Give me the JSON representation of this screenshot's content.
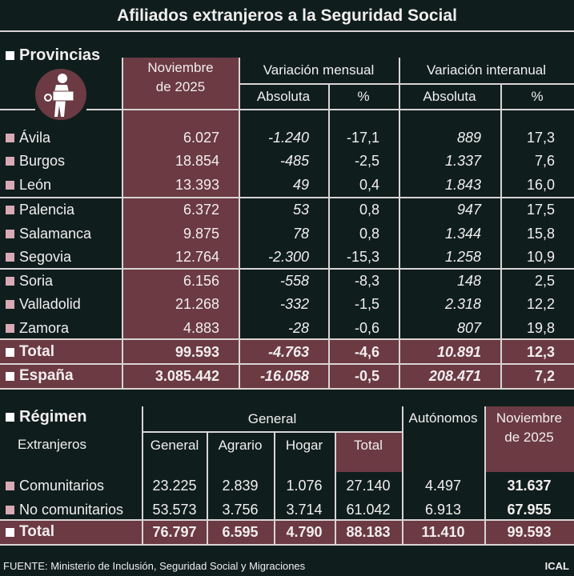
{
  "title": "Afiliados extranjeros a la Seguridad Social",
  "source": "FUENTE: Ministerio de Inclusión, Seguridad Social y Migraciones",
  "brand": "ICAL",
  "colors": {
    "background": "#0f1e1d",
    "accent": "#6b3a43",
    "bullet": "#d9a9b5"
  },
  "icon": "worker-with-toolbox-icon",
  "chart_data": [
    {
      "type": "table",
      "title": "Provincias",
      "headers": {
        "month": "Noviembre de 2025",
        "mensual": "Variación mensual",
        "interanual": "Variación interanual",
        "absoluta": "Absoluta",
        "pct": "%"
      },
      "rows": [
        {
          "name": "Ávila",
          "values": [
            "6.027",
            "-1.240",
            "-17,1",
            "889",
            "17,3"
          ]
        },
        {
          "name": "Burgos",
          "values": [
            "18.854",
            "-485",
            "-2,5",
            "1.337",
            "7,6"
          ]
        },
        {
          "name": "León",
          "values": [
            "13.393",
            "49",
            "0,4",
            "1.843",
            "16,0"
          ]
        },
        {
          "name": "Palencia",
          "values": [
            "6.372",
            "53",
            "0,8",
            "947",
            "17,5"
          ]
        },
        {
          "name": "Salamanca",
          "values": [
            "9.875",
            "78",
            "0,8",
            "1.344",
            "15,8"
          ]
        },
        {
          "name": "Segovia",
          "values": [
            "12.764",
            "-2.300",
            "-15,3",
            "1.258",
            "10,9"
          ]
        },
        {
          "name": "Soria",
          "values": [
            "6.156",
            "-558",
            "-8,3",
            "148",
            "2,5"
          ]
        },
        {
          "name": "Valladolid",
          "values": [
            "21.268",
            "-332",
            "-1,5",
            "2.318",
            "12,2"
          ]
        },
        {
          "name": "Zamora",
          "values": [
            "4.883",
            "-28",
            "-0,6",
            "807",
            "19,8"
          ]
        },
        {
          "name": "Total",
          "values": [
            "99.593",
            "-4.763",
            "-4,6",
            "10.891",
            "12,3"
          ]
        },
        {
          "name": "España",
          "values": [
            "3.085.442",
            "-16.058",
            "-0,5",
            "208.471",
            "7,2"
          ]
        }
      ]
    },
    {
      "type": "table",
      "title": "Régimen",
      "subtitle": "Extranjeros",
      "headers": {
        "general": "General",
        "cols": [
          "General",
          "Agrario",
          "Hogar",
          "Total"
        ],
        "autonomos": "Autónomos",
        "month": "Noviembre de 2025"
      },
      "rows": [
        {
          "name": "Comunitarios",
          "values": [
            "23.225",
            "2.839",
            "1.076",
            "27.140",
            "4.497",
            "31.637"
          ]
        },
        {
          "name": "No comunitarios",
          "values": [
            "53.573",
            "3.756",
            "3.714",
            "61.042",
            "6.913",
            "67.955"
          ]
        },
        {
          "name": "Total",
          "values": [
            "76.797",
            "6.595",
            "4.790",
            "88.183",
            "11.410",
            "99.593"
          ]
        }
      ]
    }
  ]
}
